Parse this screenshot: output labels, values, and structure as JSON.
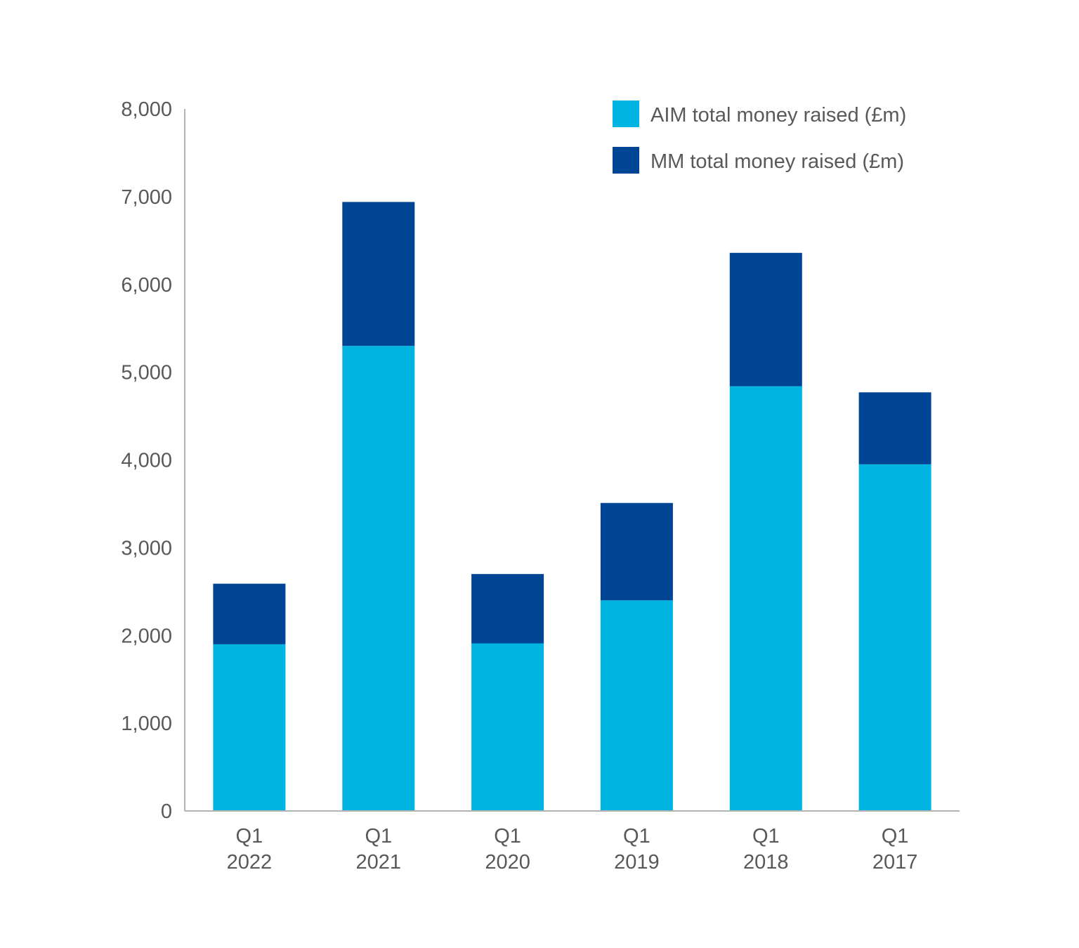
{
  "chart_data": {
    "type": "bar",
    "stacked": true,
    "categories": [
      [
        "Q1",
        "2022"
      ],
      [
        "Q1",
        "2021"
      ],
      [
        "Q1",
        "2020"
      ],
      [
        "Q1",
        "2019"
      ],
      [
        "Q1",
        "2018"
      ],
      [
        "Q1",
        "2017"
      ]
    ],
    "series": [
      {
        "name": "AIM total money raised (£m)",
        "color": "#00b5e2",
        "values": [
          1900,
          5300,
          1910,
          2400,
          4840,
          3950
        ]
      },
      {
        "name": "MM total money raised (£m)",
        "color": "#004494",
        "values": [
          690,
          1640,
          790,
          1110,
          1520,
          820
        ]
      }
    ],
    "ylim": [
      0,
      8000
    ],
    "yticks": [
      "0",
      "1,000",
      "2,000",
      "3,000",
      "4,000",
      "5,000",
      "6,000",
      "7,000",
      "8,000"
    ],
    "ytick_values": [
      0,
      1000,
      2000,
      3000,
      4000,
      5000,
      6000,
      7000,
      8000
    ],
    "grid": false,
    "legend_position": "top-right",
    "title": "",
    "xlabel": "",
    "ylabel": ""
  }
}
